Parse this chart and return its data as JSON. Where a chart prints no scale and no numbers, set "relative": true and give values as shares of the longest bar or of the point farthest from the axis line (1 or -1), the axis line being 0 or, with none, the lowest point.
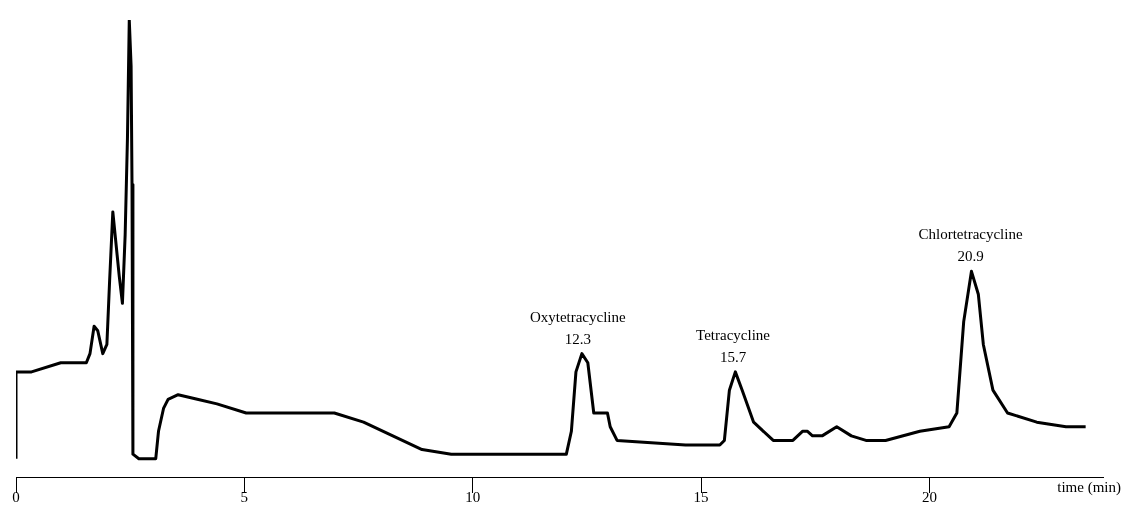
{
  "chart_data": {
    "type": "line",
    "relative": true,
    "xlabel": "time (min)",
    "xlim": [
      0,
      23.8
    ],
    "xticks": [
      0,
      5,
      10,
      15,
      20
    ],
    "grid": false,
    "legend": false,
    "marker": "none",
    "line_style": "solid",
    "annotations": [
      {
        "text": "Oxytetracycline\n12.3",
        "x": 12.3,
        "y": 0.27
      },
      {
        "text": "Tetracycline\n15.7",
        "x": 15.7,
        "y": 0.23
      },
      {
        "text": "Chlortetracycline\n20.9",
        "x": 20.9,
        "y": 0.45
      }
    ],
    "series": [
      {
        "color": "#000000",
        "x": [
          0,
          0,
          0.34,
          0.98,
          1.54,
          1.62,
          1.71,
          1.79,
          1.9,
          1.99,
          2.05,
          2.12,
          2.18,
          2.26,
          2.33,
          2.39,
          2.44,
          2.48,
          2.52,
          2.54,
          2.56,
          2.69,
          3.06,
          3.12,
          3.23,
          3.33,
          3.55,
          3.97,
          4.4,
          5.04,
          6.11,
          6.97,
          7.61,
          8.25,
          8.89,
          9.53,
          12.05,
          12.16,
          12.26,
          12.39,
          12.52,
          12.65,
          12.95,
          13.01,
          13.16,
          14.66,
          15.09,
          15.41,
          15.51,
          15.62,
          15.75,
          15.9,
          16.15,
          16.58,
          17.01,
          17.22,
          17.33,
          17.44,
          17.65,
          17.97,
          18.29,
          18.61,
          19.04,
          19.79,
          20.43,
          20.6,
          20.75,
          20.92,
          21.07,
          21.18,
          21.39,
          21.71,
          22.35,
          22.99,
          23.42
        ],
        "values": [
          0.04,
          0.23,
          0.23,
          0.25,
          0.25,
          0.27,
          0.33,
          0.32,
          0.27,
          0.29,
          0.43,
          0.58,
          0.52,
          0.44,
          0.38,
          0.53,
          0.74,
          1.0,
          0.9,
          0.64,
          0.05,
          0.04,
          0.04,
          0.1,
          0.15,
          0.17,
          0.18,
          0.17,
          0.16,
          0.14,
          0.14,
          0.14,
          0.12,
          0.09,
          0.06,
          0.05,
          0.05,
          0.1,
          0.23,
          0.27,
          0.25,
          0.14,
          0.14,
          0.11,
          0.08,
          0.07,
          0.07,
          0.07,
          0.08,
          0.19,
          0.23,
          0.19,
          0.12,
          0.08,
          0.08,
          0.1,
          0.1,
          0.09,
          0.09,
          0.11,
          0.09,
          0.08,
          0.08,
          0.1,
          0.11,
          0.14,
          0.34,
          0.45,
          0.4,
          0.29,
          0.19,
          0.14,
          0.12,
          0.11,
          0.11
        ]
      }
    ]
  }
}
